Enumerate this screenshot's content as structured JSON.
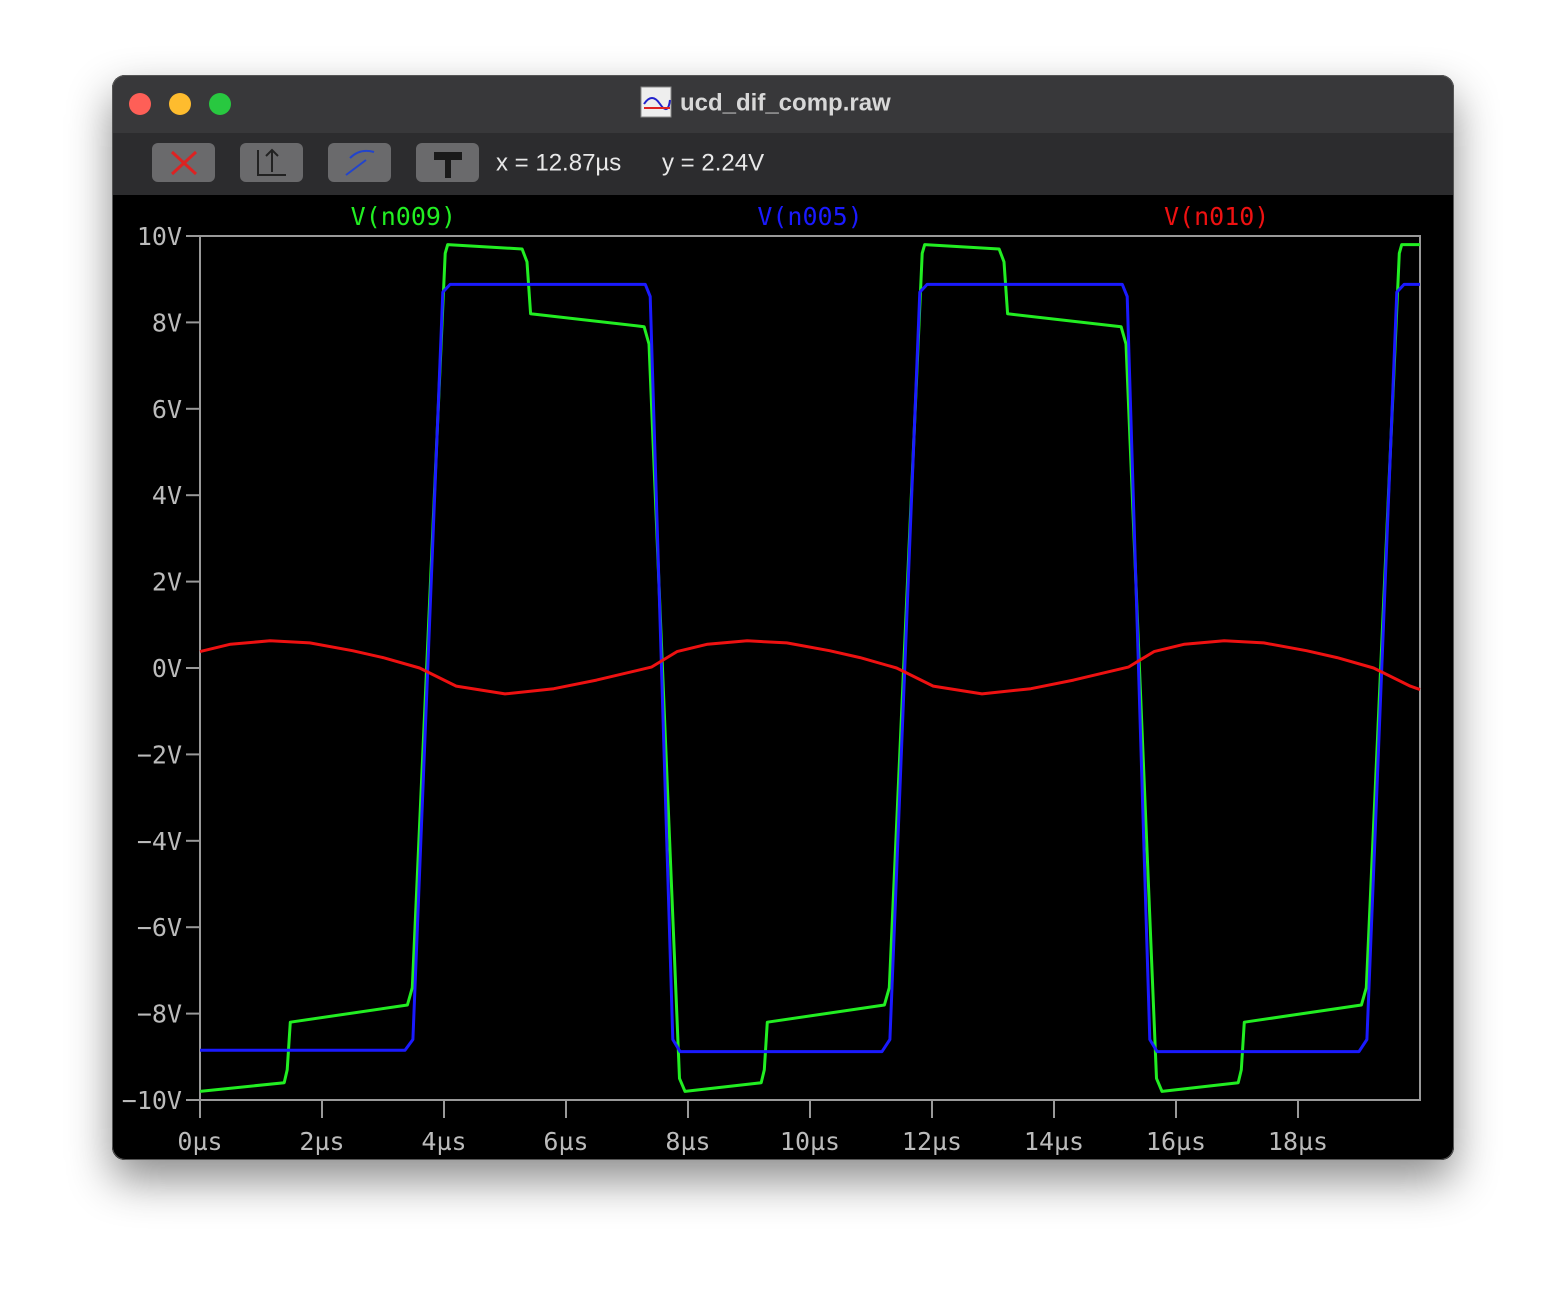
{
  "window": {
    "title": "ucd_dif_comp.raw"
  },
  "toolbar": {
    "cursor_x": "x = 12.87µs",
    "cursor_y": "y = 2.24V"
  },
  "chart_data": {
    "type": "line",
    "xlim": [
      0,
      20
    ],
    "ylim": [
      -10,
      10
    ],
    "xticks": [
      {
        "value": 0,
        "label": "0µs"
      },
      {
        "value": 2,
        "label": "2µs"
      },
      {
        "value": 4,
        "label": "4µs"
      },
      {
        "value": 6,
        "label": "6µs"
      },
      {
        "value": 8,
        "label": "8µs"
      },
      {
        "value": 10,
        "label": "10µs"
      },
      {
        "value": 12,
        "label": "12µs"
      },
      {
        "value": 14,
        "label": "14µs"
      },
      {
        "value": 16,
        "label": "16µs"
      },
      {
        "value": 18,
        "label": "18µs"
      }
    ],
    "yticks": [
      {
        "value": 10,
        "label": "10V"
      },
      {
        "value": 8,
        "label": "8V"
      },
      {
        "value": 6,
        "label": "6V"
      },
      {
        "value": 4,
        "label": "4V"
      },
      {
        "value": 2,
        "label": "2V"
      },
      {
        "value": 0,
        "label": "0V"
      },
      {
        "value": -2,
        "label": "−2V"
      },
      {
        "value": -4,
        "label": "−4V"
      },
      {
        "value": -6,
        "label": "−6V"
      },
      {
        "value": -8,
        "label": "−8V"
      },
      {
        "value": -10,
        "label": "−10V"
      }
    ],
    "series": [
      {
        "name": "V(n009)",
        "color": "#22ee22",
        "x": [
          0,
          1.38,
          1.43,
          1.48,
          3.4,
          3.48,
          4.02,
          4.06,
          5.28,
          5.36,
          5.42,
          7.28,
          7.36,
          7.86,
          7.95,
          9.2,
          9.25,
          9.3,
          11.22,
          11.3,
          11.84,
          11.88,
          13.1,
          13.18,
          13.24,
          15.1,
          15.18,
          15.68,
          15.77,
          17.02,
          17.07,
          17.12,
          19.04,
          19.12,
          19.66,
          19.7,
          20.0
        ],
        "values": [
          -9.8,
          -9.6,
          -9.3,
          -8.2,
          -7.8,
          -7.4,
          9.6,
          9.8,
          9.7,
          9.4,
          8.2,
          7.9,
          7.5,
          -9.5,
          -9.8,
          -9.6,
          -9.3,
          -8.2,
          -7.8,
          -7.4,
          9.6,
          9.8,
          9.7,
          9.4,
          8.2,
          7.9,
          7.5,
          -9.5,
          -9.8,
          -9.6,
          -9.3,
          -8.2,
          -7.8,
          -7.4,
          9.6,
          9.8,
          9.8
        ]
      },
      {
        "name": "V(n005)",
        "color": "#1a1aff",
        "x": [
          0,
          3.36,
          3.49,
          3.98,
          4.1,
          7.3,
          7.38,
          7.75,
          7.87,
          11.18,
          11.31,
          11.8,
          11.92,
          15.12,
          15.2,
          15.57,
          15.69,
          19.0,
          19.13,
          19.62,
          19.74,
          20.0
        ],
        "values": [
          -8.85,
          -8.85,
          -8.6,
          8.7,
          8.88,
          8.88,
          8.6,
          -8.6,
          -8.88,
          -8.88,
          -8.6,
          8.7,
          8.88,
          8.88,
          8.6,
          -8.6,
          -8.88,
          -8.88,
          -8.6,
          8.7,
          8.88,
          8.88
        ]
      },
      {
        "name": "V(n010)",
        "color": "#ee1111",
        "x": [
          0,
          0.5,
          1.15,
          1.8,
          2.5,
          3.0,
          3.6,
          4.2,
          5.0,
          5.8,
          6.5,
          7.4,
          7.82,
          8.32,
          8.97,
          9.62,
          10.32,
          10.82,
          11.42,
          12.02,
          12.82,
          13.62,
          14.32,
          15.22,
          15.64,
          16.14,
          16.79,
          17.44,
          18.14,
          18.64,
          19.24,
          19.84,
          20.0
        ],
        "values": [
          0.38,
          0.55,
          0.63,
          0.58,
          0.4,
          0.24,
          0.0,
          -0.42,
          -0.6,
          -0.48,
          -0.28,
          0.02,
          0.38,
          0.55,
          0.63,
          0.58,
          0.4,
          0.24,
          0.0,
          -0.42,
          -0.6,
          -0.48,
          -0.28,
          0.02,
          0.38,
          0.55,
          0.63,
          0.58,
          0.4,
          0.24,
          0.0,
          -0.42,
          -0.5
        ]
      }
    ]
  }
}
